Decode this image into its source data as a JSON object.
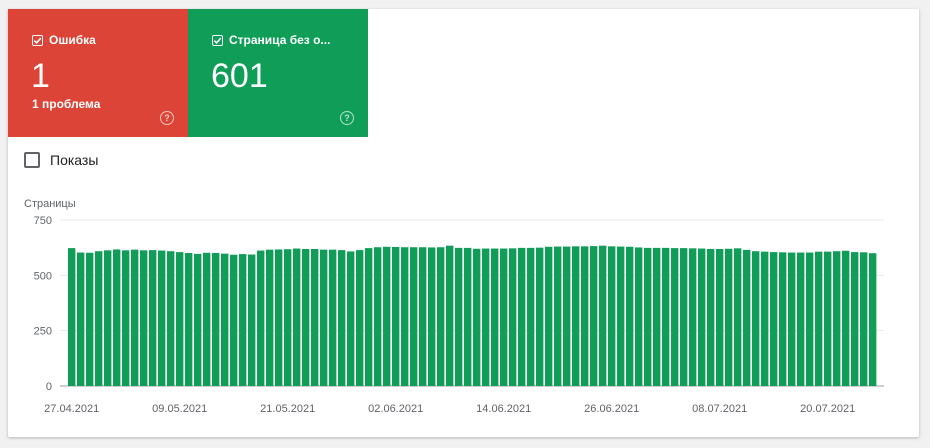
{
  "tiles": {
    "error": {
      "label": "Ошибка",
      "value": "1",
      "sub": "1 проблема",
      "color": "#db4437",
      "help_icon": "question-icon"
    },
    "valid": {
      "label": "Страница без о...",
      "value": "601",
      "color": "#0f9d58",
      "help_icon": "question-icon"
    }
  },
  "toggle": {
    "label": "Показы",
    "checked": false
  },
  "chart_data": {
    "type": "bar",
    "ylabel": "Страницы",
    "ylim": [
      0,
      750
    ],
    "yticks": [
      0,
      250,
      500,
      750
    ],
    "x_tick_labels": [
      "27.04.2021",
      "09.05.2021",
      "21.05.2021",
      "02.06.2021",
      "14.06.2021",
      "26.06.2021",
      "08.07.2021",
      "20.07.2021"
    ],
    "x_tick_indices": [
      0,
      12,
      24,
      36,
      48,
      60,
      72,
      84
    ],
    "series": [
      {
        "color": "#0f9d58",
        "values": [
          623,
          603,
          602,
          609,
          613,
          617,
          613,
          616,
          613,
          614,
          612,
          609,
          605,
          601,
          597,
          602,
          601,
          598,
          593,
          596,
          594,
          612,
          616,
          617,
          618,
          621,
          619,
          619,
          616,
          616,
          614,
          608,
          614,
          623,
          627,
          629,
          628,
          627,
          627,
          627,
          626,
          627,
          634,
          624,
          624,
          620,
          621,
          621,
          621,
          622,
          624,
          624,
          625,
          629,
          630,
          630,
          631,
          631,
          632,
          634,
          631,
          630,
          629,
          626,
          624,
          624,
          624,
          623,
          623,
          622,
          621,
          619,
          619,
          620,
          622,
          615,
          609,
          607,
          605,
          604,
          603,
          603,
          603,
          607,
          607,
          609,
          611,
          605,
          604,
          600
        ]
      }
    ],
    "grid": true,
    "legend": "none"
  }
}
